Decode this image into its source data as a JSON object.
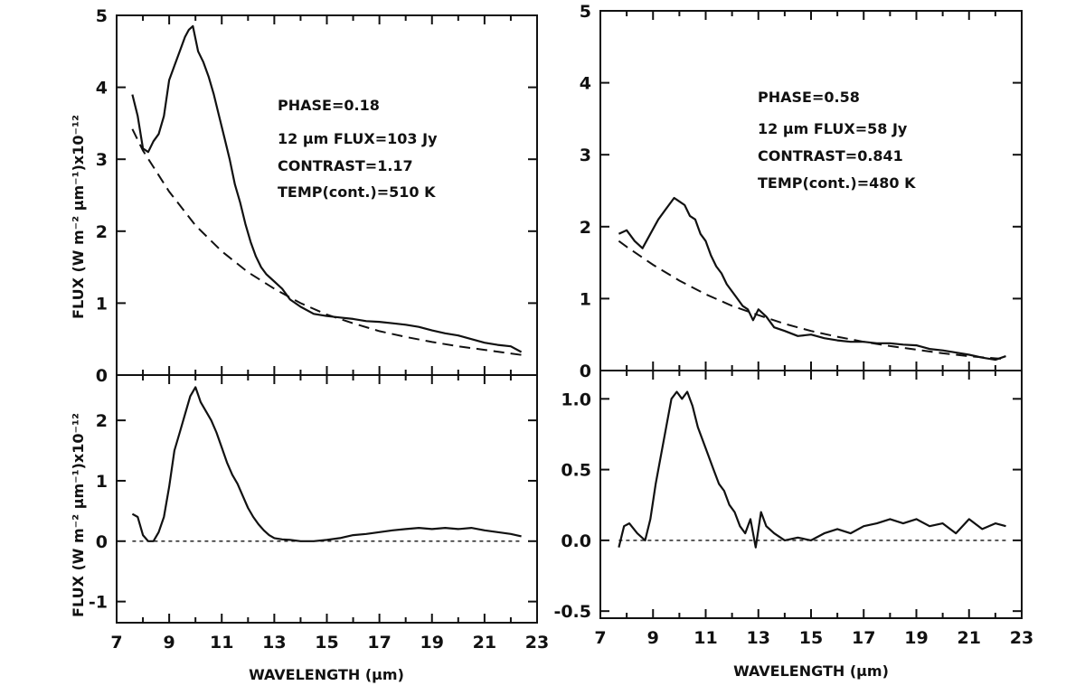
{
  "chart_data": [
    {
      "type": "line",
      "panel": "left-top",
      "ylabel": "FLUX (W m⁻² µm⁻¹)x10⁻¹²",
      "xlim": [
        7,
        23
      ],
      "ylim": [
        0,
        5
      ],
      "yticks": [
        "0",
        "1",
        "2",
        "3",
        "4",
        "5"
      ],
      "annotations": [
        "PHASE=0.18",
        "12 µm FLUX=103 Jy",
        "CONTRAST=1.17",
        "TEMP(cont.)=510 K"
      ],
      "series": [
        {
          "style": "solid",
          "x": [
            7.6,
            7.8,
            8.0,
            8.2,
            8.4,
            8.6,
            8.8,
            9.0,
            9.2,
            9.4,
            9.6,
            9.75,
            9.9,
            10.1,
            10.3,
            10.5,
            10.7,
            10.9,
            11.1,
            11.3,
            11.5,
            11.7,
            11.9,
            12.1,
            12.3,
            12.5,
            12.7,
            13.0,
            13.3,
            13.6,
            14.0,
            14.5,
            15.0,
            15.5,
            16.0,
            16.5,
            17.0,
            17.5,
            18.0,
            18.5,
            19.0,
            19.5,
            20.0,
            20.5,
            21.0,
            21.5,
            22.0,
            22.4
          ],
          "y": [
            3.9,
            3.6,
            3.15,
            3.1,
            3.25,
            3.35,
            3.6,
            4.1,
            4.3,
            4.5,
            4.7,
            4.8,
            4.85,
            4.5,
            4.35,
            4.15,
            3.9,
            3.6,
            3.3,
            3.0,
            2.65,
            2.4,
            2.1,
            1.85,
            1.65,
            1.5,
            1.4,
            1.3,
            1.2,
            1.05,
            0.95,
            0.85,
            0.82,
            0.8,
            0.78,
            0.75,
            0.74,
            0.72,
            0.7,
            0.67,
            0.62,
            0.58,
            0.55,
            0.5,
            0.45,
            0.42,
            0.4,
            0.32
          ]
        },
        {
          "style": "dashed",
          "x": [
            7.6,
            8,
            9,
            10,
            11,
            12,
            13,
            14,
            15,
            16,
            17,
            18,
            19,
            20,
            21,
            22,
            22.4
          ],
          "y": [
            3.42,
            3.12,
            2.55,
            2.08,
            1.72,
            1.43,
            1.2,
            1.0,
            0.84,
            0.72,
            0.61,
            0.53,
            0.46,
            0.4,
            0.35,
            0.3,
            0.28
          ]
        }
      ]
    },
    {
      "type": "line",
      "panel": "right-top",
      "ylabel": "",
      "xlim": [
        7,
        23
      ],
      "ylim": [
        0,
        5
      ],
      "yticks": [
        "0",
        "1",
        "2",
        "3",
        "4",
        "5"
      ],
      "annotations": [
        "PHASE=0.58",
        "12 µm FLUX=58 Jy",
        "CONTRAST=0.841",
        "TEMP(cont.)=480 K"
      ],
      "series": [
        {
          "style": "solid",
          "x": [
            7.7,
            8.0,
            8.3,
            8.6,
            8.9,
            9.2,
            9.5,
            9.8,
            10.0,
            10.2,
            10.4,
            10.6,
            10.8,
            11.0,
            11.2,
            11.4,
            11.6,
            11.8,
            12.0,
            12.2,
            12.4,
            12.6,
            12.8,
            13.0,
            13.3,
            13.6,
            14.0,
            14.5,
            15.0,
            15.5,
            16.0,
            16.5,
            17.0,
            17.5,
            18.0,
            18.5,
            19.0,
            19.5,
            20.0,
            20.5,
            21.0,
            21.5,
            22.0,
            22.4
          ],
          "y": [
            1.9,
            1.95,
            1.8,
            1.7,
            1.9,
            2.1,
            2.25,
            2.4,
            2.35,
            2.3,
            2.15,
            2.1,
            1.9,
            1.8,
            1.6,
            1.45,
            1.35,
            1.2,
            1.1,
            1.0,
            0.9,
            0.85,
            0.7,
            0.85,
            0.75,
            0.6,
            0.55,
            0.48,
            0.5,
            0.45,
            0.42,
            0.4,
            0.4,
            0.38,
            0.38,
            0.36,
            0.35,
            0.3,
            0.28,
            0.25,
            0.22,
            0.18,
            0.15,
            0.2
          ]
        },
        {
          "style": "dashed",
          "x": [
            7.7,
            8,
            9,
            10,
            11,
            12,
            13,
            14,
            15,
            16,
            17,
            18,
            19,
            20,
            21,
            22,
            22.4
          ],
          "y": [
            1.8,
            1.72,
            1.47,
            1.25,
            1.06,
            0.9,
            0.77,
            0.65,
            0.55,
            0.47,
            0.4,
            0.34,
            0.29,
            0.24,
            0.2,
            0.17,
            0.16
          ]
        }
      ]
    },
    {
      "type": "line",
      "panel": "left-bottom",
      "ylabel": "FLUX (W m⁻² µm⁻¹)x10⁻¹²",
      "xlabel": "WAVELENGTH (µm)",
      "xlim": [
        7,
        23
      ],
      "ylim": [
        -1.35,
        2.75
      ],
      "yticks": [
        "-1",
        "0",
        "1",
        "2"
      ],
      "xticks": [
        "7",
        "9",
        "11",
        "13",
        "15",
        "17",
        "19",
        "21",
        "23"
      ],
      "series": [
        {
          "style": "solid",
          "x": [
            7.6,
            7.8,
            8.0,
            8.2,
            8.4,
            8.6,
            8.8,
            9.0,
            9.2,
            9.4,
            9.6,
            9.8,
            10.0,
            10.2,
            10.4,
            10.6,
            10.8,
            11.0,
            11.2,
            11.4,
            11.6,
            11.8,
            12.0,
            12.2,
            12.4,
            12.6,
            12.8,
            13.0,
            13.3,
            13.6,
            14.0,
            14.5,
            15.0,
            15.5,
            16.0,
            16.5,
            17.0,
            17.5,
            18.0,
            18.5,
            19.0,
            19.5,
            20.0,
            20.5,
            21.0,
            21.5,
            22.0,
            22.4
          ],
          "y": [
            0.45,
            0.4,
            0.1,
            0.0,
            0.0,
            0.15,
            0.4,
            0.9,
            1.5,
            1.8,
            2.1,
            2.4,
            2.55,
            2.3,
            2.15,
            2.0,
            1.8,
            1.55,
            1.3,
            1.1,
            0.95,
            0.75,
            0.55,
            0.4,
            0.28,
            0.18,
            0.1,
            0.05,
            0.03,
            0.02,
            0.0,
            0.0,
            0.02,
            0.05,
            0.1,
            0.12,
            0.15,
            0.18,
            0.2,
            0.22,
            0.2,
            0.22,
            0.2,
            0.22,
            0.18,
            0.15,
            0.12,
            0.08
          ]
        },
        {
          "style": "dotted",
          "x": [
            7.6,
            22.4
          ],
          "y": [
            0,
            0
          ]
        }
      ]
    },
    {
      "type": "line",
      "panel": "right-bottom",
      "ylabel": "",
      "xlabel": "WAVELENGTH (µm)",
      "xlim": [
        7,
        23
      ],
      "ylim": [
        -0.55,
        1.2
      ],
      "yticks": [
        "-0.5",
        "0.0",
        "0.5",
        "1.0"
      ],
      "xticks": [
        "7",
        "9",
        "11",
        "13",
        "15",
        "17",
        "19",
        "21",
        "23"
      ],
      "series": [
        {
          "style": "solid",
          "x": [
            7.7,
            7.9,
            8.1,
            8.4,
            8.7,
            8.9,
            9.1,
            9.3,
            9.5,
            9.7,
            9.9,
            10.1,
            10.3,
            10.5,
            10.7,
            10.9,
            11.1,
            11.3,
            11.5,
            11.7,
            11.9,
            12.1,
            12.3,
            12.5,
            12.7,
            12.9,
            13.1,
            13.3,
            13.6,
            14.0,
            14.5,
            15.0,
            15.5,
            16.0,
            16.5,
            17.0,
            17.5,
            18.0,
            18.5,
            19.0,
            19.5,
            20.0,
            20.5,
            21.0,
            21.5,
            22.0,
            22.4
          ],
          "y": [
            -0.05,
            0.1,
            0.12,
            0.05,
            0.0,
            0.15,
            0.4,
            0.6,
            0.8,
            1.0,
            1.05,
            1.0,
            1.05,
            0.95,
            0.8,
            0.7,
            0.6,
            0.5,
            0.4,
            0.35,
            0.25,
            0.2,
            0.1,
            0.05,
            0.15,
            -0.05,
            0.2,
            0.1,
            0.05,
            0.0,
            0.02,
            0.0,
            0.05,
            0.08,
            0.05,
            0.1,
            0.12,
            0.15,
            0.12,
            0.15,
            0.1,
            0.12,
            0.05,
            0.15,
            0.08,
            0.12,
            0.1
          ]
        },
        {
          "style": "dotted",
          "x": [
            7.7,
            22.4
          ],
          "y": [
            0,
            0
          ]
        }
      ]
    }
  ]
}
